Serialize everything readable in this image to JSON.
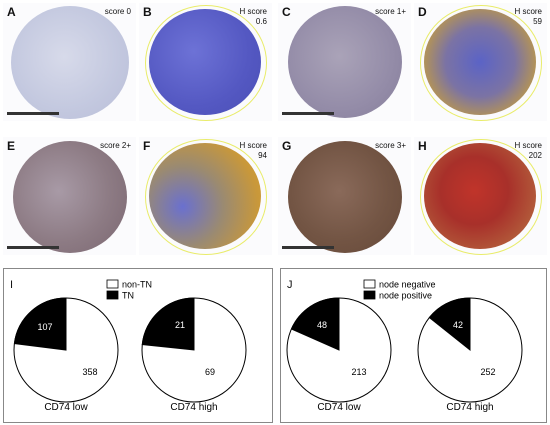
{
  "tiles": [
    {
      "letter": "A",
      "label": "score 0"
    },
    {
      "letter": "B",
      "label": "H score\n0.6"
    },
    {
      "letter": "C",
      "label": "score 1+"
    },
    {
      "letter": "D",
      "label": "H score\n59"
    },
    {
      "letter": "E",
      "label": "score 2+"
    },
    {
      "letter": "F",
      "label": "H score\n94"
    },
    {
      "letter": "G",
      "label": "score 3+"
    },
    {
      "letter": "H",
      "label": "H score\n202"
    }
  ],
  "panels": [
    {
      "letter": "I",
      "legend": [
        "non-TN",
        "TN"
      ]
    },
    {
      "letter": "J",
      "legend": [
        "node negative",
        "node positive"
      ]
    }
  ],
  "chart_data": [
    {
      "type": "pie",
      "title": "CD74 low",
      "categories": [
        "non-TN",
        "TN"
      ],
      "values": [
        358,
        107
      ]
    },
    {
      "type": "pie",
      "title": "CD74 high",
      "categories": [
        "non-TN",
        "TN"
      ],
      "values": [
        69,
        21
      ]
    },
    {
      "type": "pie",
      "title": "CD74 low",
      "categories": [
        "node negative",
        "node positive"
      ],
      "values": [
        213,
        48
      ]
    },
    {
      "type": "pie",
      "title": "CD74 high",
      "categories": [
        "node negative",
        "node positive"
      ],
      "values": [
        252,
        42
      ]
    }
  ],
  "colors": {
    "unstained": "#c8cce0",
    "hematoxylin": "#5b5fc8",
    "dab_brown": "#8a6a4e",
    "positive_yellow": "#d6a63a",
    "strong_red": "#b03028",
    "pie_black": "#000000",
    "pie_white": "#ffffff"
  }
}
